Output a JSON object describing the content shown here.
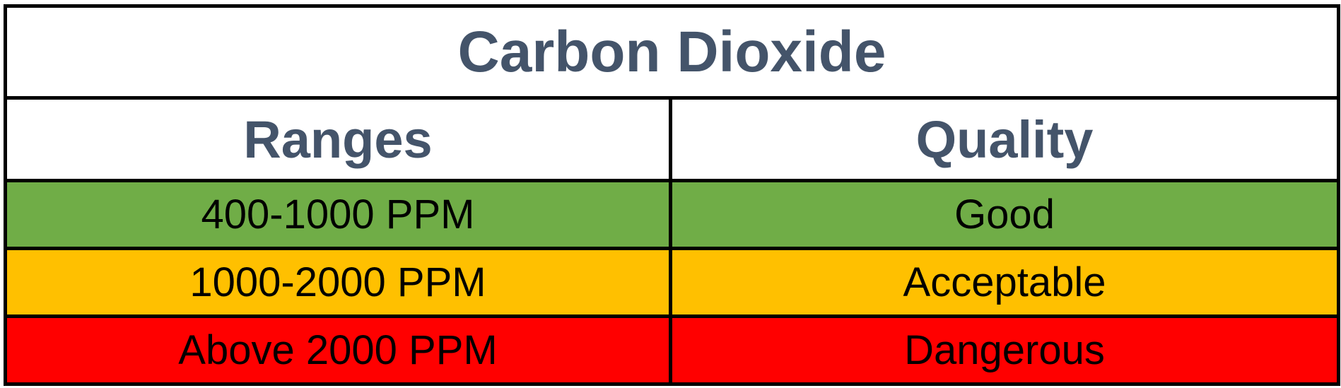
{
  "table": {
    "title": "Carbon Dioxide",
    "title_color": "#44546a",
    "headers": [
      "Ranges",
      "Quality"
    ],
    "rows": [
      {
        "range": "400-1000 PPM",
        "quality": "Good",
        "color": "#70ad47"
      },
      {
        "range": "1000-2000 PPM",
        "quality": "Acceptable",
        "color": "#ffc000"
      },
      {
        "range": "Above 2000 PPM",
        "quality": "Dangerous",
        "color": "#ff0000"
      }
    ]
  }
}
